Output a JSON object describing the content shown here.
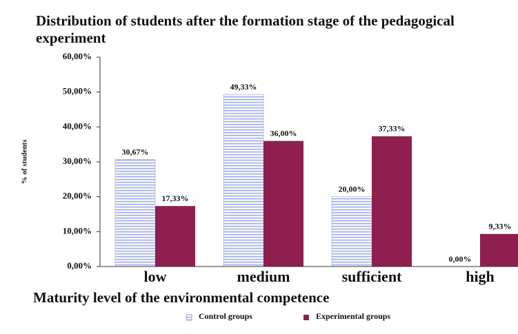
{
  "chart_data": {
    "type": "bar",
    "title": "Distribution of students after the formation stage of the pedagogical experiment",
    "y_label": "% of students",
    "x_label": "Maturity level of the environmental competence",
    "categories": [
      "low",
      "medium",
      "sufficient",
      "high"
    ],
    "series": [
      {
        "name": "Control groups",
        "color": "#9aa6e0",
        "hatch": true,
        "values": [
          30.67,
          49.33,
          20.0,
          0.0
        ],
        "value_labels": [
          "30,67%",
          "49,33%",
          "20,00%",
          "0,00%"
        ]
      },
      {
        "name": "Experimental groups",
        "color": "#8e1f4f",
        "hatch": false,
        "values": [
          17.33,
          36.0,
          37.33,
          9.33
        ],
        "value_labels": [
          "17,33%",
          "36,00%",
          "37,33%",
          "9,33%"
        ]
      }
    ],
    "ylim": [
      0,
      60
    ],
    "yticks": [
      {
        "value": 0,
        "label": "0,00%"
      },
      {
        "value": 10,
        "label": "10,00%"
      },
      {
        "value": 20,
        "label": "20,00%"
      },
      {
        "value": 30,
        "label": "30,00%"
      },
      {
        "value": 40,
        "label": "40,00%"
      },
      {
        "value": 50,
        "label": "50,00%"
      },
      {
        "value": 60,
        "label": "60,00%"
      }
    ],
    "grid": false
  }
}
